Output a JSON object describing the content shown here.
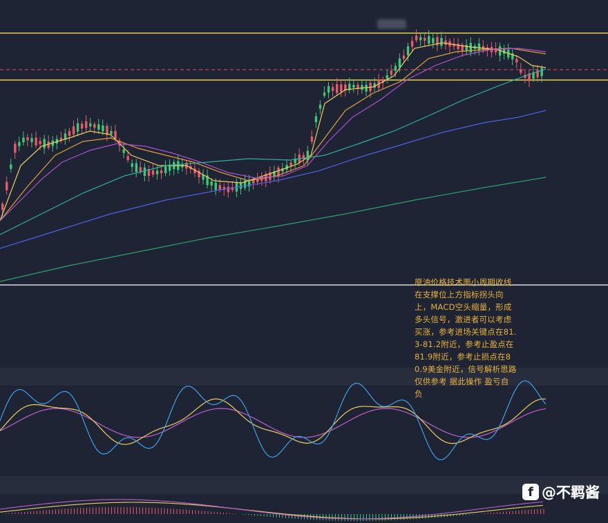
{
  "colors": {
    "background": "#1e2433",
    "panel_divider": "#272d3d",
    "up_candle": "#e85a6a",
    "down_candle": "#3cc97a",
    "resistance_line": "#e6d34a",
    "dashed_level": "#e0506a",
    "separator": "#ffffff",
    "ma_yellow": "#f0d060",
    "ma_orange": "#e0a040",
    "ma_purple": "#b050d0",
    "ma_teal": "#30b0a0",
    "ma_blue": "#5060e0",
    "ma_green": "#30a070",
    "osc_blue": "#3fa0e8",
    "osc_yellow": "#f0d060",
    "osc_purple": "#c060d0",
    "annotation_text": "#e8b23a"
  },
  "annotation": {
    "text": "原油价格技术面小周期收线在支撑位上方指标拐头向上，MACD空头缩量，形成多头信号，激进者可以考虑买涨，参考进场关键点在81.3-81.2附近，参考止盈点在81.9附近，参考止损点在80.9美金附近，信号解析思路仅供参考 据此操作 盈亏自负"
  },
  "watermark": {
    "logo_glyph": "f",
    "text": "@不羁酱"
  },
  "chart_data": {
    "type": "candlestick",
    "title": "",
    "xlabel": "",
    "ylabel": "",
    "grid": false,
    "horizontal_levels": [
      {
        "kind": "resistance",
        "style": "solid",
        "color": "#e6d34a"
      },
      {
        "kind": "current-price",
        "style": "dashed",
        "color": "#e0506a"
      },
      {
        "kind": "support",
        "style": "solid",
        "color": "#e6d34a"
      }
    ],
    "moving_averages": [
      "yellow",
      "orange",
      "purple",
      "teal",
      "blue",
      "green"
    ],
    "sub_panels": [
      {
        "type": "oscillator",
        "series": [
          "blue",
          "yellow",
          "purple"
        ]
      },
      {
        "type": "macd",
        "series": [
          "histogram",
          "dif",
          "dea"
        ]
      }
    ]
  }
}
